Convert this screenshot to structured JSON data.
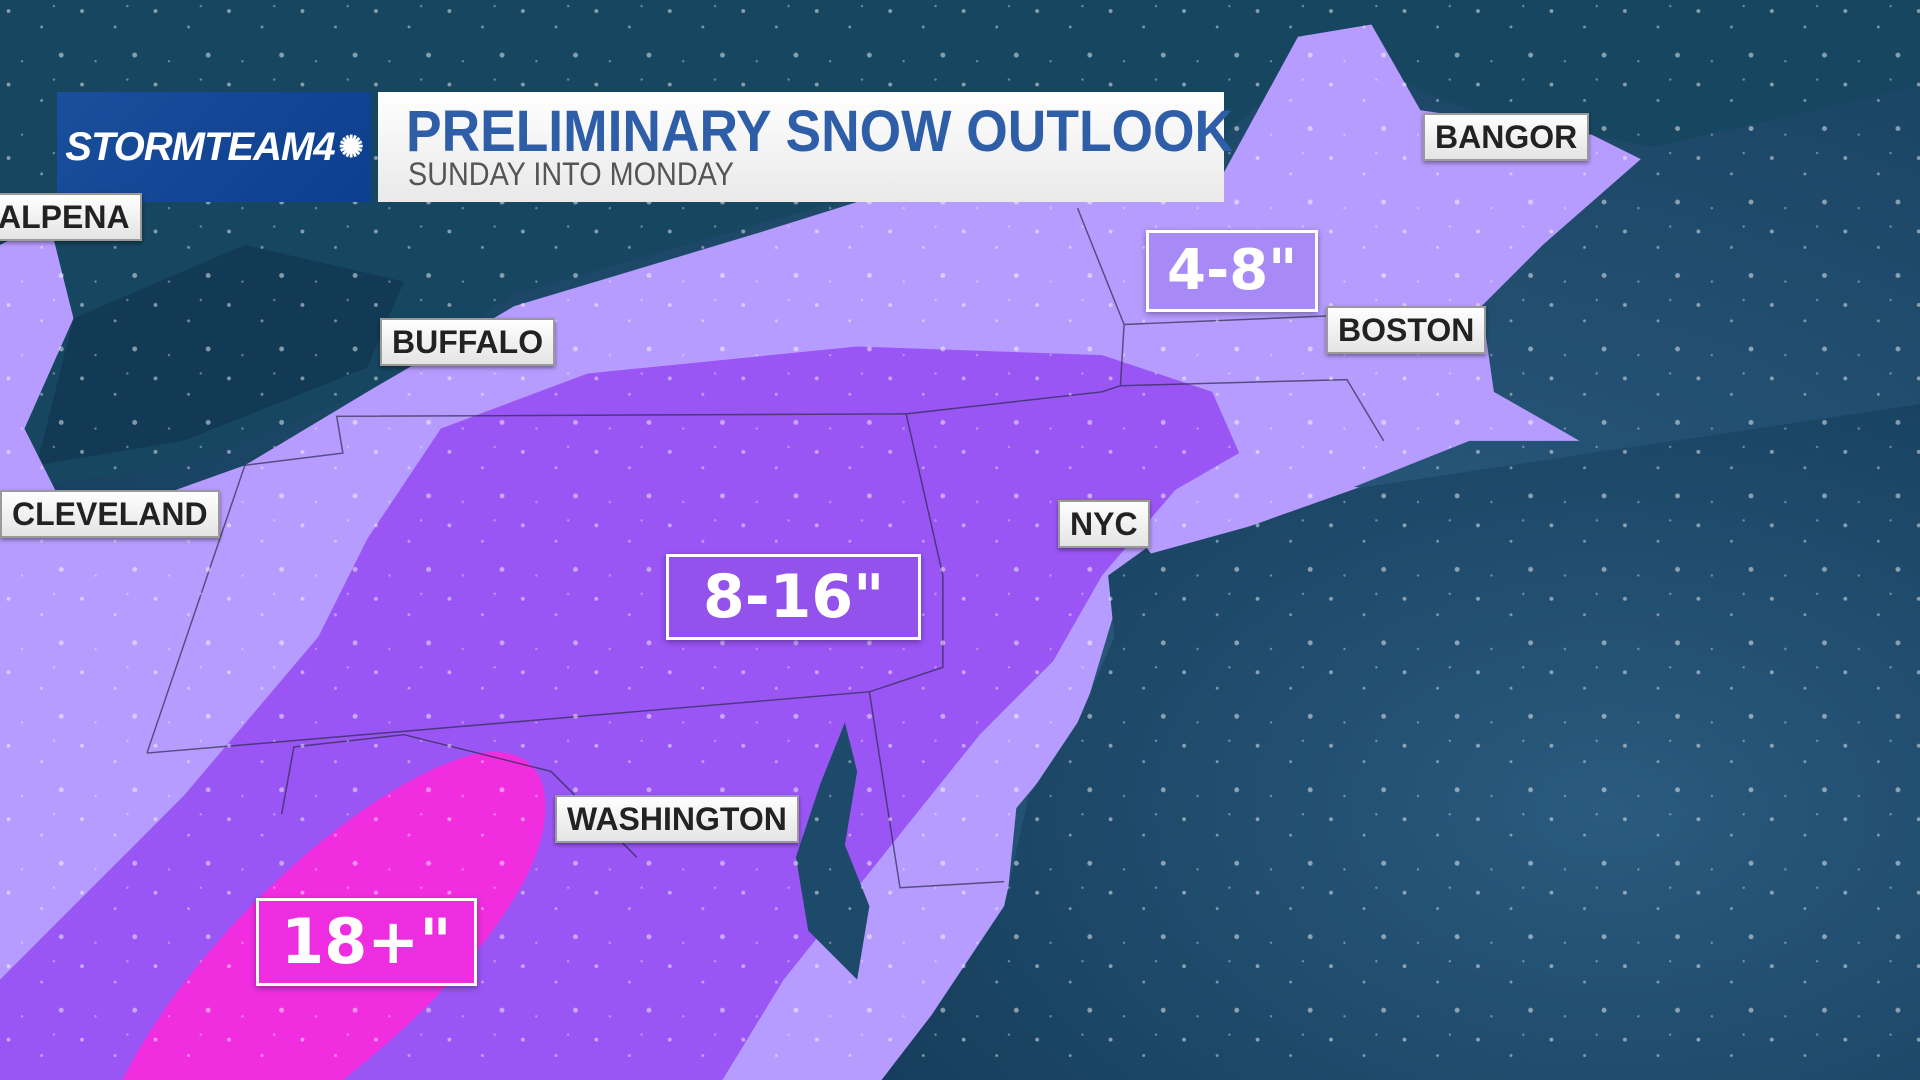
{
  "header": {
    "brand": "STORMTEAM4",
    "title": "PRELIMINARY SNOW OUTLOOK",
    "subtitle": "SUNDAY INTO MONDAY"
  },
  "cities": [
    {
      "name": "ALPENA"
    },
    {
      "name": "BUFFALO"
    },
    {
      "name": "CLEVELAND",
      "visible_text": "LEVELAND"
    },
    {
      "name": "BANGOR"
    },
    {
      "name": "BOSTON"
    },
    {
      "name": "NYC"
    },
    {
      "name": "WASHINGTON"
    }
  ],
  "snow_zones": [
    {
      "label": "4-8\"",
      "color": "#b79cff"
    },
    {
      "label": "8-16\"",
      "color": "#9a55f5"
    },
    {
      "label": "18+\"",
      "color": "#f02ee0"
    }
  ],
  "colors": {
    "ocean": "#1d4a6b",
    "land_dark": "#174660",
    "brand_blue": "#0c3f8f",
    "title_blue": "#2f5ea8"
  }
}
